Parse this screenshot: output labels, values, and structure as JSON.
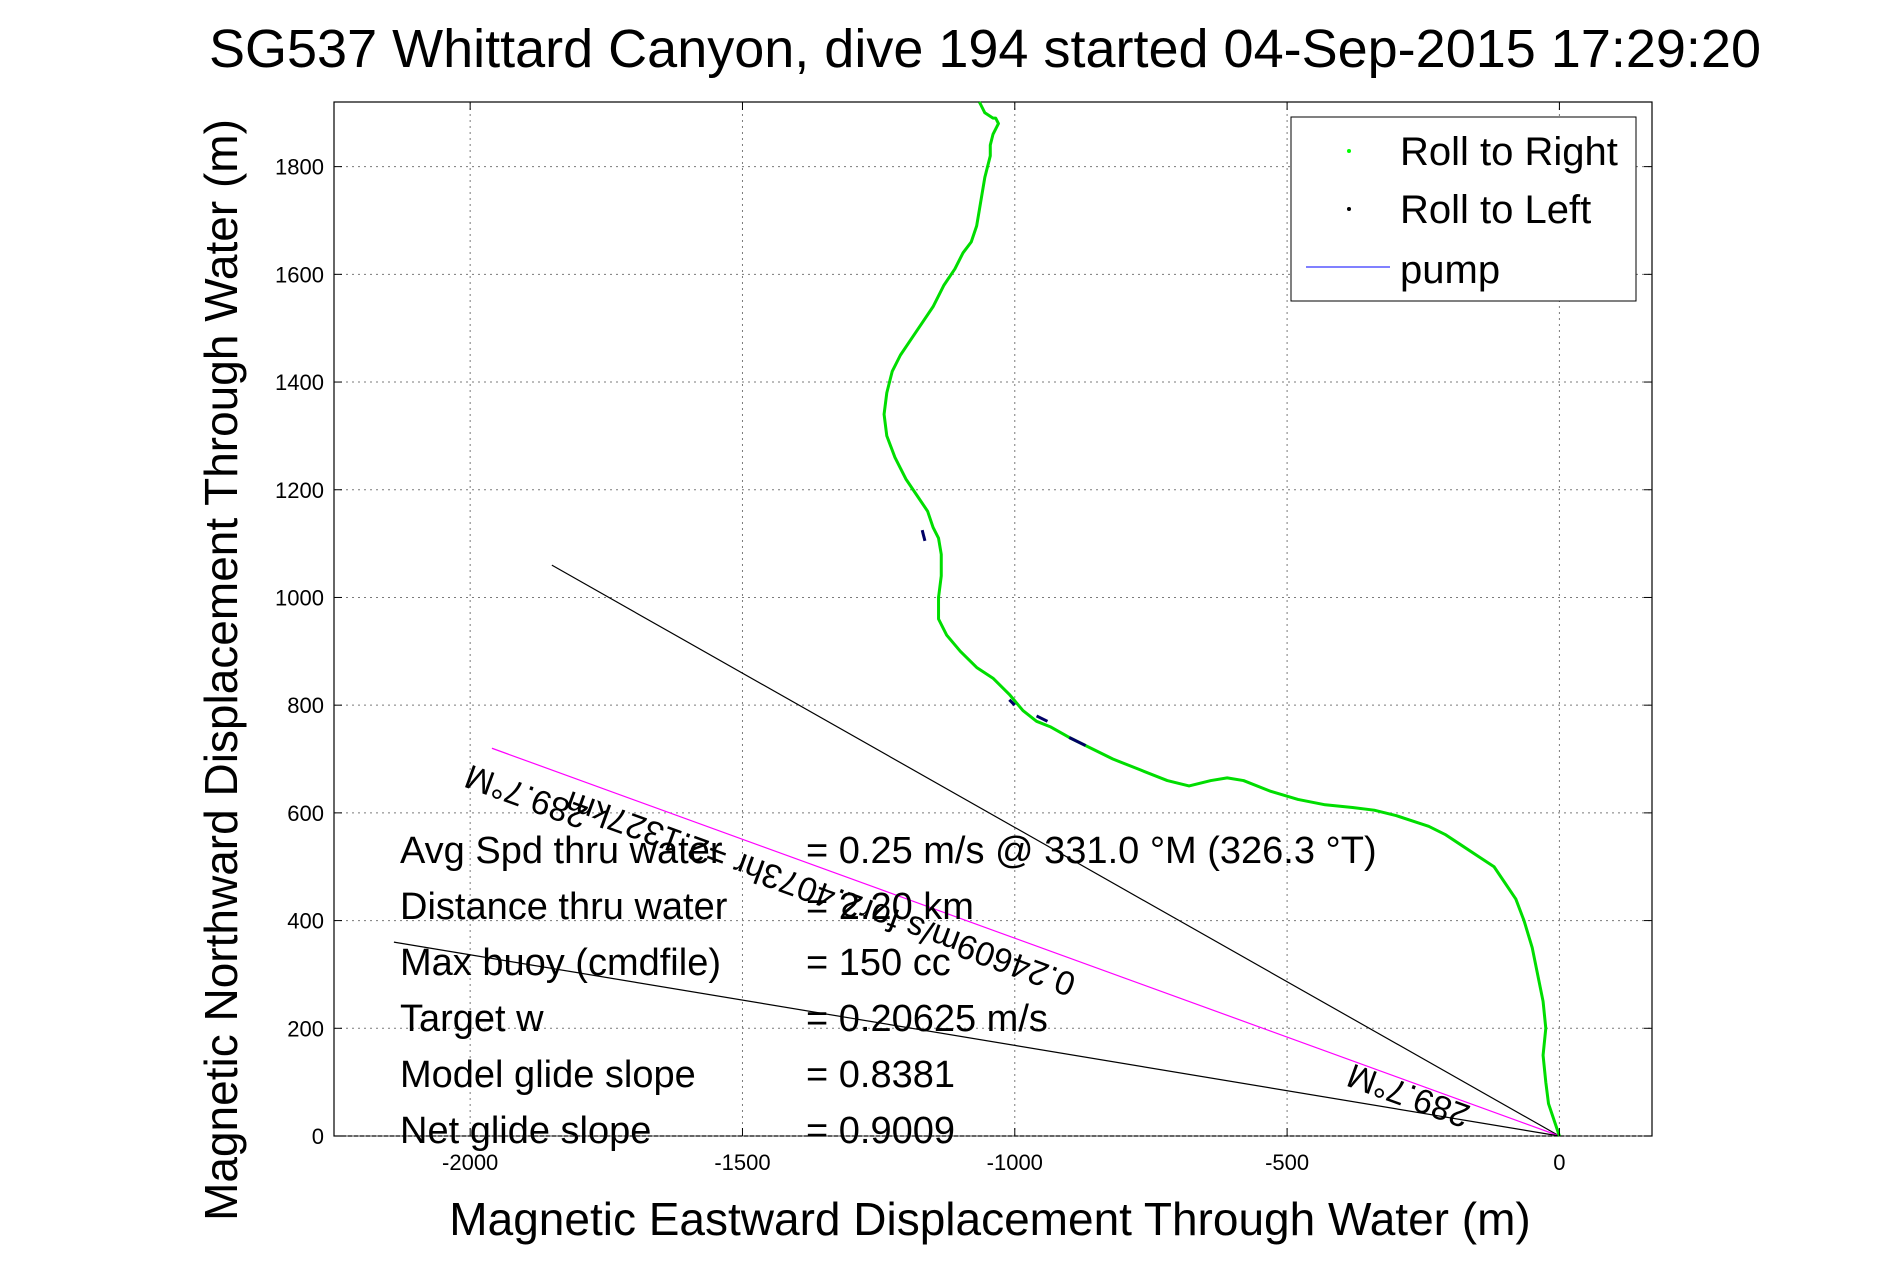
{
  "chart_data": {
    "type": "line",
    "title": "SG537 Whittard Canyon, dive 194 started 04-Sep-2015 17:29:20",
    "xlabel": "Magnetic Eastward Displacement Through Water (m)",
    "ylabel": "Magnetic Northward Displacement Through Water (m)",
    "xlim": [
      -2250,
      170
    ],
    "ylim": [
      0,
      1920
    ],
    "xticks": [
      -2000,
      -1500,
      -1000,
      -500,
      0
    ],
    "yticks": [
      0,
      200,
      400,
      600,
      800,
      1000,
      1200,
      1400,
      1600,
      1800
    ],
    "grid": true,
    "legend_position": "top-right",
    "legend": [
      {
        "label": "Roll to Right",
        "color": "#00ff00",
        "style": "dot"
      },
      {
        "label": "Roll to Left",
        "color": "#000000",
        "style": "dot"
      },
      {
        "label": "pump",
        "color": "#0000ff",
        "style": "line"
      }
    ],
    "series": [
      {
        "color": "#00dd00",
        "x": [
          0,
          -10,
          -20,
          -25,
          -30,
          -25,
          -30,
          -40,
          -50,
          -65,
          -80,
          -100,
          -120,
          -150,
          -180,
          -210,
          -240,
          -270,
          -300,
          -340,
          -380,
          -430,
          -480,
          -530,
          -580,
          -610,
          -640,
          -680,
          -720,
          -770,
          -820,
          -860,
          -900,
          -935,
          -960,
          -985,
          -1010,
          -1040,
          -1070,
          -1100,
          -1125,
          -1140,
          -1140,
          -1135,
          -1135,
          -1140,
          -1150,
          -1160,
          -1180,
          -1200,
          -1220,
          -1235,
          -1240,
          -1235,
          -1225,
          -1210,
          -1190,
          -1170,
          -1150,
          -1130,
          -1110,
          -1095,
          -1080,
          -1070,
          -1065,
          -1060,
          -1055,
          -1050,
          -1045,
          -1045,
          -1040,
          -1035,
          -1030,
          -1035,
          -1040,
          -1055,
          -1060,
          -1065
        ],
        "y": [
          0,
          30,
          60,
          100,
          150,
          200,
          250,
          300,
          350,
          400,
          440,
          470,
          500,
          520,
          540,
          560,
          575,
          585,
          595,
          605,
          610,
          615,
          625,
          640,
          660,
          665,
          660,
          650,
          660,
          680,
          700,
          720,
          740,
          760,
          770,
          790,
          820,
          850,
          870,
          900,
          930,
          960,
          1000,
          1040,
          1080,
          1110,
          1130,
          1160,
          1190,
          1220,
          1260,
          1300,
          1340,
          1380,
          1420,
          1450,
          1480,
          1510,
          1540,
          1580,
          1610,
          1640,
          1660,
          1690,
          1720,
          1750,
          1780,
          1800,
          1820,
          1840,
          1860,
          1870,
          1880,
          1890,
          1890,
          1900,
          1910,
          1920
        ]
      }
    ],
    "roll_left_segments": [
      {
        "x": [
          -1165,
          -1170
        ],
        "y": [
          1105,
          1125
        ]
      },
      {
        "x": [
          -1010,
          -1000
        ],
        "y": [
          810,
          800
        ]
      },
      {
        "x": [
          -960,
          -940
        ],
        "y": [
          780,
          770
        ]
      },
      {
        "x": [
          -900,
          -870
        ],
        "y": [
          740,
          725
        ]
      }
    ],
    "reference_lines": [
      {
        "color": "#000000",
        "x": [
          0,
          -1850
        ],
        "y": [
          0,
          1060
        ]
      },
      {
        "color": "#ff00ff",
        "x": [
          0,
          -1960
        ],
        "y": [
          0,
          720
        ]
      },
      {
        "color": "#000000",
        "x": [
          0,
          -2140
        ],
        "y": [
          0,
          360
        ]
      }
    ],
    "annotations": [
      {
        "text": "289.7°M",
        "x": -1890,
        "y": 650,
        "rotate": 200
      },
      {
        "text": "0.24609m/s for2.4073hr =2.1327km",
        "x": -1350,
        "y": 470,
        "rotate": 200
      },
      {
        "text": "289.7°M",
        "x": -270,
        "y": 95,
        "rotate": 200
      }
    ],
    "stats": [
      {
        "label": "Avg Spd thru water",
        "value": "=  0.25 m/s @ 331.0 °M (326.3 °T)"
      },
      {
        "label": "Distance thru water",
        "value": "= 2.20 km"
      },
      {
        "label": "Max buoy (cmdfile)",
        "value": "= 150 cc"
      },
      {
        "label": "Target w",
        "value": "= 0.20625 m/s"
      },
      {
        "label": "Model glide slope",
        "value": "= 0.8381"
      },
      {
        "label": "Net glide slope",
        "value": "= 0.9009"
      }
    ]
  }
}
